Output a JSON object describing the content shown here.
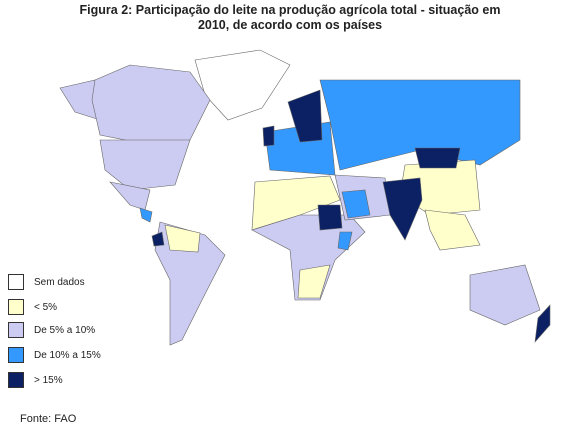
{
  "title": "Figura 2: Participação do leite na produção agrícola total - situação em 2010, de acordo com os países",
  "legend": [
    {
      "label": "Sem dados",
      "color": "#ffffff"
    },
    {
      "label": "< 5%",
      "color": "#ffffcc"
    },
    {
      "label": "De 5% a 10%",
      "color": "#ccccf2"
    },
    {
      "label": "De 10% a 15%",
      "color": "#3399ff"
    },
    {
      "label": "> 15%",
      "color": "#0b2163"
    }
  ],
  "source": "Fonte: FAO"
}
